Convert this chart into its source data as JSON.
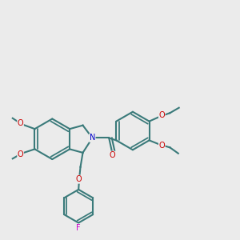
{
  "background_color": "#ebebeb",
  "bond_color": "#3a7a7a",
  "o_color": "#cc0000",
  "n_color": "#0000cc",
  "f_color": "#cc00cc",
  "lw": 1.5,
  "figsize": [
    3.0,
    3.0
  ],
  "dpi": 100,
  "atoms": {
    "O": "#cc0000",
    "N": "#0000cc",
    "F": "#cc00cc"
  }
}
